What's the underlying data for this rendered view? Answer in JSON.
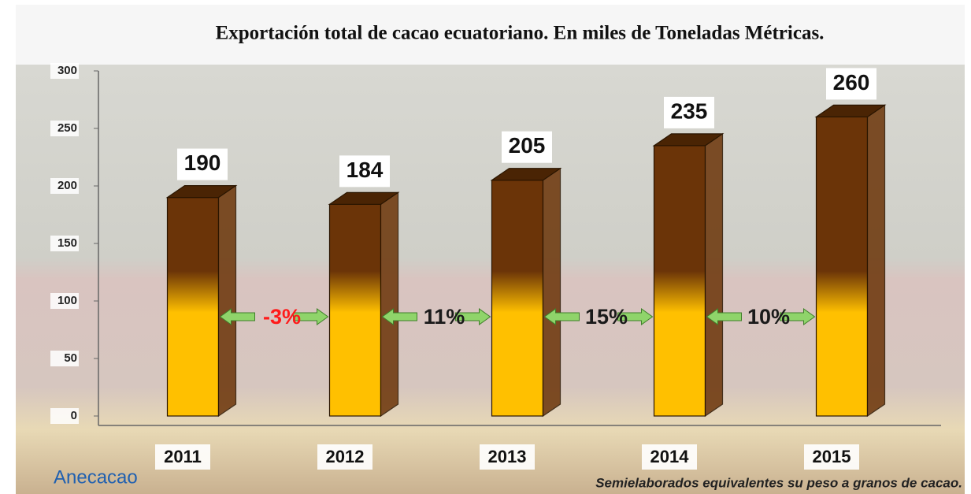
{
  "chart_data": {
    "type": "bar3d",
    "title": "Exportación total de cacao ecuatoriano. En miles de Toneladas Métricas.",
    "categories": [
      "2011",
      "2012",
      "2013",
      "2014",
      "2015"
    ],
    "values": [
      190,
      184,
      205,
      235,
      260
    ],
    "color_top": "#6b3408",
    "color_bottom": "#ffc000",
    "ylim": [
      0,
      300
    ],
    "yticks": [
      0,
      50,
      100,
      150,
      200,
      250,
      300
    ],
    "annotations": [
      {
        "text": "-3%",
        "color": "#ff1a1a"
      },
      {
        "text": "11%",
        "color": "#1a1a1a"
      },
      {
        "text": "15%",
        "color": "#1a1a1a"
      },
      {
        "text": "10%",
        "color": "#1a1a1a"
      }
    ],
    "footnote": "Semielaborados equivalentes su peso a granos de cacao.",
    "source_logo": "Anecacao"
  }
}
